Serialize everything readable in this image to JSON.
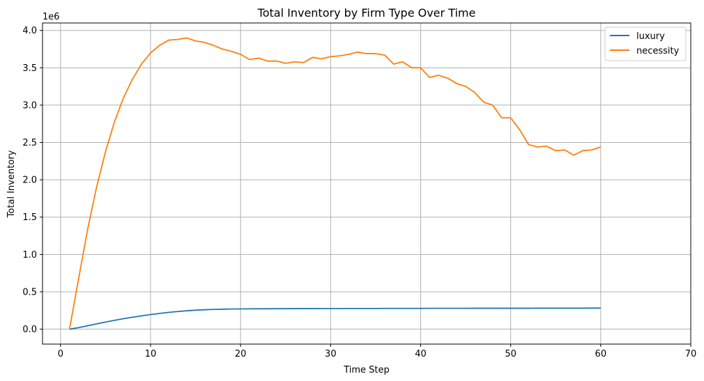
{
  "chart_data": {
    "type": "line",
    "title": "Total Inventory by Firm Type Over Time",
    "xlabel": "Time Step",
    "ylabel": "Total Inventory",
    "offset_label": "1e6",
    "xlim": [
      -2,
      70
    ],
    "ylim": [
      -0.2,
      4.1
    ],
    "x_ticks": [
      0,
      10,
      20,
      30,
      40,
      50,
      60,
      70
    ],
    "x_tick_labels": [
      "0",
      "10",
      "20",
      "30",
      "40",
      "50",
      "60",
      "70"
    ],
    "y_ticks": [
      0.0,
      0.5,
      1.0,
      1.5,
      2.0,
      2.5,
      3.0,
      3.5,
      4.0
    ],
    "y_tick_labels": [
      "0.0",
      "0.5",
      "1.0",
      "1.5",
      "2.0",
      "2.5",
      "3.0",
      "3.5",
      "4.0"
    ],
    "grid": true,
    "legend_position": "top-right",
    "x": [
      1,
      2,
      3,
      4,
      5,
      6,
      7,
      8,
      9,
      10,
      11,
      12,
      13,
      14,
      15,
      16,
      17,
      18,
      19,
      20,
      21,
      22,
      23,
      24,
      25,
      26,
      27,
      28,
      29,
      30,
      31,
      32,
      33,
      34,
      35,
      36,
      37,
      38,
      39,
      40,
      41,
      42,
      43,
      44,
      45,
      46,
      47,
      48,
      49,
      50,
      51,
      52,
      53,
      54,
      55,
      56,
      57,
      58,
      59,
      60
    ],
    "series": [
      {
        "name": "luxury",
        "color": "#1f77b4",
        "values": [
          0.0,
          0.02,
          0.045,
          0.07,
          0.095,
          0.118,
          0.14,
          0.16,
          0.178,
          0.195,
          0.21,
          0.224,
          0.236,
          0.246,
          0.254,
          0.26,
          0.264,
          0.267,
          0.27,
          0.271,
          0.272,
          0.273,
          0.273,
          0.274,
          0.274,
          0.275,
          0.275,
          0.275,
          0.276,
          0.276,
          0.276,
          0.277,
          0.277,
          0.277,
          0.277,
          0.278,
          0.278,
          0.278,
          0.278,
          0.278,
          0.279,
          0.279,
          0.279,
          0.279,
          0.279,
          0.28,
          0.28,
          0.28,
          0.28,
          0.28,
          0.28,
          0.28,
          0.281,
          0.281,
          0.281,
          0.281,
          0.281,
          0.281,
          0.282,
          0.282
        ]
      },
      {
        "name": "necessity",
        "color": "#ff7f0e",
        "values": [
          0.0,
          0.67,
          1.33,
          1.9,
          2.38,
          2.78,
          3.1,
          3.35,
          3.55,
          3.7,
          3.8,
          3.87,
          3.88,
          3.9,
          3.86,
          3.84,
          3.8,
          3.75,
          3.72,
          3.68,
          3.61,
          3.63,
          3.59,
          3.59,
          3.56,
          3.58,
          3.57,
          3.64,
          3.62,
          3.65,
          3.66,
          3.68,
          3.71,
          3.69,
          3.69,
          3.67,
          3.55,
          3.58,
          3.5,
          3.5,
          3.37,
          3.4,
          3.36,
          3.29,
          3.25,
          3.17,
          3.04,
          3.0,
          2.83,
          2.83,
          2.67,
          2.47,
          2.44,
          2.45,
          2.39,
          2.4,
          2.33,
          2.39,
          2.4,
          2.44
        ]
      }
    ]
  }
}
